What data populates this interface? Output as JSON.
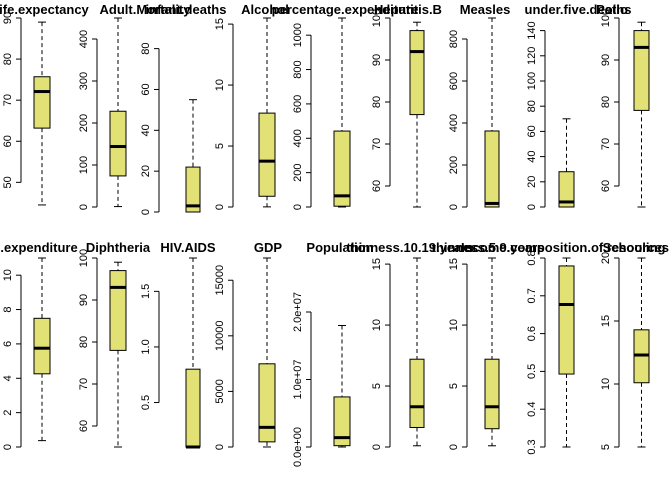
{
  "chart_data": [
    {
      "type": "box",
      "title": "Life.expectancy",
      "ylim": [
        44,
        90
      ],
      "ticks": [
        "50",
        "60",
        "70",
        "80",
        "90"
      ],
      "tick_values": [
        50,
        60,
        70,
        80,
        90
      ],
      "box": {
        "lower_whisker": 44.5,
        "q1": 63.2,
        "median": 72.1,
        "q3": 75.7,
        "upper_whisker": 89
      }
    },
    {
      "type": "box",
      "title": "Adult.Mortality",
      "ylim": [
        0,
        720
      ],
      "ticks": [
        "0",
        "100",
        "200",
        "300",
        "400"
      ],
      "tick_values": [
        0,
        100,
        200,
        300,
        400
      ],
      "box": {
        "lower_whisker": 1,
        "q1": 74,
        "median": 144,
        "q3": 228,
        "upper_whisker": 455
      }
    },
    {
      "type": "box",
      "title": "infant.deaths",
      "ylim": [
        0,
        1800
      ],
      "ticks": [
        "0",
        "20",
        "40",
        "60",
        "80"
      ],
      "tick_values": [
        0,
        20,
        40,
        60,
        80
      ],
      "box": {
        "lower_whisker": 0,
        "q1": 0,
        "median": 3,
        "q3": 22,
        "upper_whisker": 55
      }
    },
    {
      "type": "box",
      "title": "Alcohol",
      "ylim": [
        0,
        17.9
      ],
      "ticks": [
        "0",
        "5",
        "10",
        "15"
      ],
      "tick_values": [
        0,
        5,
        10,
        15
      ],
      "box": {
        "lower_whisker": 0.01,
        "q1": 0.88,
        "median": 3.76,
        "q3": 7.7,
        "upper_whisker": 17.9
      }
    },
    {
      "type": "box",
      "title": "percentage.expenditure",
      "ylim": [
        0,
        19500
      ],
      "ticks": [
        "0",
        "200",
        "400",
        "600",
        "800",
        "1000"
      ],
      "tick_values": [
        0,
        200,
        400,
        600,
        800,
        1000
      ],
      "box": {
        "lower_whisker": 0,
        "q1": 4.7,
        "median": 64.9,
        "q3": 442,
        "upper_whisker": 1100
      }
    },
    {
      "type": "box",
      "title": "Hepatitis.B",
      "ylim": [
        1,
        99
      ],
      "ticks": [
        "60",
        "70",
        "80",
        "90",
        "100"
      ],
      "tick_values": [
        60,
        70,
        80,
        90,
        100
      ],
      "box": {
        "lower_whisker": 55,
        "q1": 77,
        "median": 92,
        "q3": 97,
        "upper_whisker": 99
      }
    },
    {
      "type": "box",
      "title": "Measles",
      "ylim": [
        0,
        212000
      ],
      "ticks": [
        "0",
        "200",
        "400",
        "600",
        "800"
      ],
      "tick_values": [
        0,
        200,
        400,
        600,
        800
      ],
      "box": {
        "lower_whisker": 0,
        "q1": 0,
        "median": 17,
        "q3": 362,
        "upper_whisker": 900
      }
    },
    {
      "type": "box",
      "title": "under.five.deaths",
      "ylim": [
        0,
        2500
      ],
      "ticks": [
        "0",
        "20",
        "40",
        "60",
        "80",
        "100",
        "120",
        "140"
      ],
      "tick_values": [
        0,
        20,
        40,
        60,
        80,
        100,
        120,
        140
      ],
      "box": {
        "lower_whisker": 0,
        "q1": 0,
        "median": 4,
        "q3": 28,
        "upper_whisker": 70
      }
    },
    {
      "type": "box",
      "title": "Polio",
      "ylim": [
        3,
        99
      ],
      "ticks": [
        "60",
        "70",
        "80",
        "90",
        "100"
      ],
      "tick_values": [
        60,
        70,
        80,
        90,
        100
      ],
      "box": {
        "lower_whisker": 55,
        "q1": 78,
        "median": 93,
        "q3": 97,
        "upper_whisker": 99
      }
    },
    {
      "type": "box",
      "title": "Total.expenditure",
      "ylim": [
        0.37,
        17.6
      ],
      "ticks": [
        "0",
        "2",
        "4",
        "6",
        "8",
        "10"
      ],
      "tick_values": [
        0,
        2,
        4,
        6,
        8,
        10
      ],
      "box": {
        "lower_whisker": 0.37,
        "q1": 4.26,
        "median": 5.75,
        "q3": 7.49,
        "upper_whisker": 12.3
      }
    },
    {
      "type": "box",
      "title": "Diphtheria",
      "ylim": [
        2,
        99
      ],
      "ticks": [
        "60",
        "70",
        "80",
        "90",
        "100"
      ],
      "tick_values": [
        60,
        70,
        80,
        90,
        100
      ],
      "box": {
        "lower_whisker": 55,
        "q1": 78,
        "median": 93,
        "q3": 97,
        "upper_whisker": 99
      }
    },
    {
      "type": "box",
      "title": "HIV.AIDS",
      "ylim": [
        0.1,
        50.6
      ],
      "ticks": [
        "0.5",
        "1.0",
        "1.5"
      ],
      "tick_values": [
        0.5,
        1.0,
        1.5
      ],
      "box": {
        "lower_whisker": 0.1,
        "q1": 0.1,
        "median": 0.1,
        "q3": 0.8,
        "upper_whisker": 1.8
      }
    },
    {
      "type": "box",
      "title": "GDP",
      "ylim": [
        1.68,
        119173
      ],
      "ticks": [
        "0",
        "5000",
        "10000",
        "15000"
      ],
      "tick_values": [
        0,
        5000,
        10000,
        15000
      ],
      "box": {
        "lower_whisker": 1.68,
        "q1": 463,
        "median": 1767,
        "q3": 7483,
        "upper_whisker": 17000
      }
    },
    {
      "type": "box",
      "title": "Population",
      "ylim": [
        34,
        1290000000
      ],
      "ticks": [
        "0.0e+00",
        "1.0e+07",
        "2.0e+07"
      ],
      "tick_values": [
        0,
        10000000,
        20000000
      ],
      "box": {
        "lower_whisker": 34,
        "q1": 195800,
        "median": 1386500,
        "q3": 7420000,
        "upper_whisker": 18000000
      }
    },
    {
      "type": "box",
      "title": "thinness.10.19.years",
      "ylim": [
        0.1,
        27.7
      ],
      "ticks": [
        "0",
        "5",
        "10",
        "15"
      ],
      "tick_values": [
        0,
        5,
        10,
        15
      ],
      "box": {
        "lower_whisker": 0.1,
        "q1": 1.6,
        "median": 3.3,
        "q3": 7.2,
        "upper_whisker": 15.5
      }
    },
    {
      "type": "box",
      "title": "thinness.5.9.years",
      "ylim": [
        0.1,
        28.6
      ],
      "ticks": [
        "0",
        "5",
        "10",
        "15"
      ],
      "tick_values": [
        0,
        5,
        10,
        15
      ],
      "box": {
        "lower_whisker": 0.1,
        "q1": 1.5,
        "median": 3.3,
        "q3": 7.2,
        "upper_whisker": 15.5
      }
    },
    {
      "type": "box",
      "title": "Income.composition.of.resources",
      "ylim": [
        0,
        0.948
      ],
      "ticks": [
        "0.3",
        "0.4",
        "0.5",
        "0.6",
        "0.7",
        "0.8"
      ],
      "tick_values": [
        0.3,
        0.4,
        0.5,
        0.6,
        0.7,
        0.8
      ],
      "box": {
        "lower_whisker": 0.3,
        "q1": 0.493,
        "median": 0.677,
        "q3": 0.779,
        "upper_whisker": 0.948
      }
    },
    {
      "type": "box",
      "title": "Schooling",
      "ylim": [
        0,
        20.7
      ],
      "ticks": [
        "5",
        "10",
        "15",
        "20"
      ],
      "tick_values": [
        5,
        10,
        15,
        20
      ],
      "box": {
        "lower_whisker": 4.8,
        "q1": 10.1,
        "median": 12.3,
        "q3": 14.3,
        "upper_whisker": 20.7
      }
    }
  ],
  "colors": {
    "box_fill": "#e2e176",
    "stroke": "#000000",
    "background": "#ffffff"
  }
}
